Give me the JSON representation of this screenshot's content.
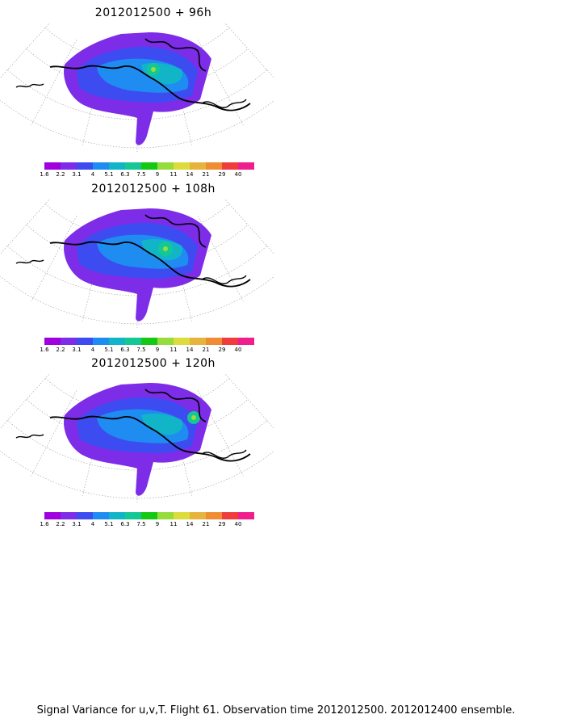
{
  "panels": [
    {
      "title": "2012012500  +  96h"
    },
    {
      "title": "2012012500  +  108h"
    },
    {
      "title": "2012012500  +  120h"
    }
  ],
  "colorbar": {
    "labels": [
      "1.6",
      "2.2",
      "3.1",
      "4",
      "5.1",
      "6.3",
      "7.5",
      "9",
      "11",
      "14",
      "21",
      "29",
      "40"
    ],
    "colors": [
      "#a000e0",
      "#7d2ce8",
      "#3c4cf0",
      "#1e8cf0",
      "#12b4c8",
      "#14c896",
      "#14c814",
      "#96dc3c",
      "#dcdc3c",
      "#e6b43c",
      "#f08c32",
      "#f03c3c",
      "#f01e8c"
    ]
  },
  "caption": "Signal Variance for u,v,T. Flight 61. Observation time 2012012500. 2012012400 ensemble."
}
